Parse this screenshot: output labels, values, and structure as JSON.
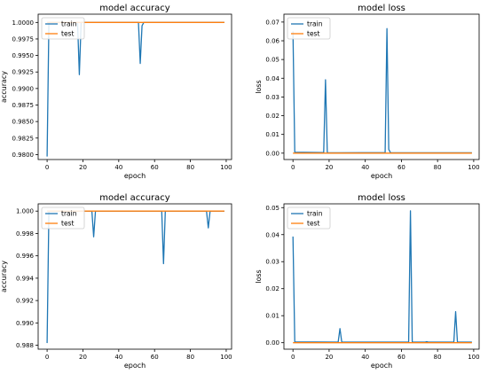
{
  "colors": {
    "train": "#1f77b4",
    "test": "#ff7f0e"
  },
  "chart_data": [
    {
      "type": "line",
      "title": "model accuracy",
      "xlabel": "epoch",
      "ylabel": "accuracy",
      "xlim": [
        -5,
        103
      ],
      "ylim": [
        0.97925,
        1.00125
      ],
      "xticks": [
        0,
        20,
        40,
        60,
        80,
        100
      ],
      "yticks": [
        0.98,
        0.9825,
        0.985,
        0.9875,
        0.99,
        0.9925,
        0.995,
        0.9975,
        1.0
      ],
      "ytick_labels": [
        "0.9800",
        "0.9825",
        "0.9850",
        "0.9875",
        "0.9900",
        "0.9925",
        "0.9950",
        "0.9975",
        "1.0000"
      ],
      "legend": "top-left",
      "grid": false,
      "series": [
        {
          "name": "train",
          "points": [
            [
              0,
              0.9797
            ],
            [
              1,
              1.0
            ],
            [
              17,
              1.0
            ],
            [
              18,
              0.9921
            ],
            [
              19,
              1.0
            ],
            [
              51,
              1.0
            ],
            [
              52,
              0.9938
            ],
            [
              53,
              0.9995
            ],
            [
              54,
              1.0
            ],
            [
              99,
              1.0
            ]
          ]
        },
        {
          "name": "test",
          "points": [
            [
              0,
              1.0
            ],
            [
              99,
              1.0
            ]
          ]
        }
      ]
    },
    {
      "type": "line",
      "title": "model loss",
      "xlabel": "epoch",
      "ylabel": "loss",
      "xlim": [
        -5,
        103
      ],
      "ylim": [
        -0.0034,
        0.0742
      ],
      "xticks": [
        0,
        20,
        40,
        60,
        80,
        100
      ],
      "yticks": [
        0.0,
        0.01,
        0.02,
        0.03,
        0.04,
        0.05,
        0.06,
        0.07
      ],
      "ytick_labels": [
        "0.00",
        "0.01",
        "0.02",
        "0.03",
        "0.04",
        "0.05",
        "0.06",
        "0.07"
      ],
      "legend": "top-left",
      "grid": false,
      "series": [
        {
          "name": "train",
          "points": [
            [
              0,
              0.065
            ],
            [
              1,
              0.0005
            ],
            [
              17,
              0.0003
            ],
            [
              18,
              0.0392
            ],
            [
              19,
              0.0002
            ],
            [
              51,
              0.0003
            ],
            [
              52,
              0.0665
            ],
            [
              53,
              0.002
            ],
            [
              54,
              0.0002
            ],
            [
              99,
              0.0002
            ]
          ]
        },
        {
          "name": "test",
          "points": [
            [
              0,
              0.0
            ],
            [
              99,
              0.0
            ]
          ]
        }
      ]
    },
    {
      "type": "line",
      "title": "model accuracy",
      "xlabel": "epoch",
      "ylabel": "accuracy",
      "xlim": [
        -5,
        103
      ],
      "ylim": [
        0.98765,
        1.00065
      ],
      "xticks": [
        0,
        20,
        40,
        60,
        80,
        100
      ],
      "yticks": [
        0.988,
        0.99,
        0.992,
        0.994,
        0.996,
        0.998,
        1.0
      ],
      "ytick_labels": [
        "0.988",
        "0.990",
        "0.992",
        "0.994",
        "0.996",
        "0.998",
        "1.000"
      ],
      "legend": "top-left",
      "grid": false,
      "series": [
        {
          "name": "train",
          "points": [
            [
              0,
              0.9882
            ],
            [
              1,
              1.0
            ],
            [
              25,
              1.0
            ],
            [
              26,
              0.9977
            ],
            [
              27,
              1.0
            ],
            [
              64,
              1.0
            ],
            [
              65,
              0.9953
            ],
            [
              66,
              1.0
            ],
            [
              89,
              1.0
            ],
            [
              90,
              0.9985
            ],
            [
              91,
              1.0
            ],
            [
              99,
              1.0
            ]
          ]
        },
        {
          "name": "test",
          "points": [
            [
              0,
              1.0
            ],
            [
              99,
              1.0
            ]
          ]
        }
      ]
    },
    {
      "type": "line",
      "title": "model loss",
      "xlabel": "epoch",
      "ylabel": "loss",
      "xlim": [
        -5,
        103
      ],
      "ylim": [
        -0.0024,
        0.0514
      ],
      "xticks": [
        0,
        20,
        40,
        60,
        80,
        100
      ],
      "yticks": [
        0.0,
        0.01,
        0.02,
        0.03,
        0.04,
        0.05
      ],
      "ytick_labels": [
        "0.00",
        "0.01",
        "0.02",
        "0.03",
        "0.04",
        "0.05"
      ],
      "legend": "top-left",
      "grid": false,
      "series": [
        {
          "name": "train",
          "points": [
            [
              0,
              0.0393
            ],
            [
              1,
              0.0003
            ],
            [
              25,
              0.0002
            ],
            [
              26,
              0.0052
            ],
            [
              27,
              0.0002
            ],
            [
              64,
              0.0002
            ],
            [
              65,
              0.0488
            ],
            [
              66,
              0.0002
            ],
            [
              73,
              0.0002
            ],
            [
              74,
              0.0004
            ],
            [
              75,
              0.0002
            ],
            [
              89,
              0.0002
            ],
            [
              90,
              0.0115
            ],
            [
              91,
              0.0002
            ],
            [
              99,
              0.0002
            ]
          ]
        },
        {
          "name": "test",
          "points": [
            [
              0,
              0.0
            ],
            [
              99,
              0.0
            ]
          ]
        }
      ]
    }
  ]
}
